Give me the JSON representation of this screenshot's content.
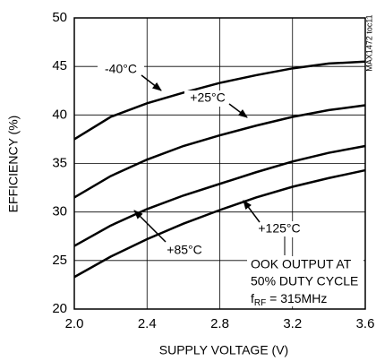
{
  "chart_data": {
    "type": "line",
    "xlabel": "SUPPLY VOLTAGE (V)",
    "ylabel": "EFFICIENCY (%)",
    "side_note": "MAX1472 toc11",
    "x": [
      2.0,
      2.2,
      2.4,
      2.6,
      2.8,
      3.0,
      3.2,
      3.4,
      3.6
    ],
    "series": [
      {
        "name": "-40°C",
        "color": "#000000",
        "values": [
          37.5,
          39.8,
          41.2,
          42.3,
          43.3,
          44.1,
          44.8,
          45.3,
          45.5
        ]
      },
      {
        "name": "+25°C",
        "color": "#000000",
        "values": [
          31.5,
          33.7,
          35.4,
          36.8,
          37.9,
          38.9,
          39.8,
          40.5,
          41.0
        ]
      },
      {
        "name": "+85°C",
        "color": "#000000",
        "values": [
          26.5,
          28.6,
          30.3,
          31.7,
          32.9,
          34.1,
          35.2,
          36.1,
          36.8
        ]
      },
      {
        "name": "+125°C",
        "color": "#000000",
        "values": [
          23.3,
          25.4,
          27.2,
          28.8,
          30.2,
          31.5,
          32.6,
          33.5,
          34.3
        ]
      }
    ],
    "annotation": [
      "OOK OUTPUT AT",
      "50% DUTY CYCLE"
    ],
    "annotation_freq": [
      "f",
      "RF",
      " = 315MHz"
    ],
    "xlim": [
      2.0,
      3.6
    ],
    "xticks": [
      {
        "value": 2.0,
        "label": "2.0"
      },
      2.4,
      2.8,
      3.2,
      3.6
    ],
    "ylim": [
      20,
      50
    ],
    "yticks": [
      20,
      25,
      30,
      35,
      40,
      45,
      50
    ],
    "grid": true
  }
}
